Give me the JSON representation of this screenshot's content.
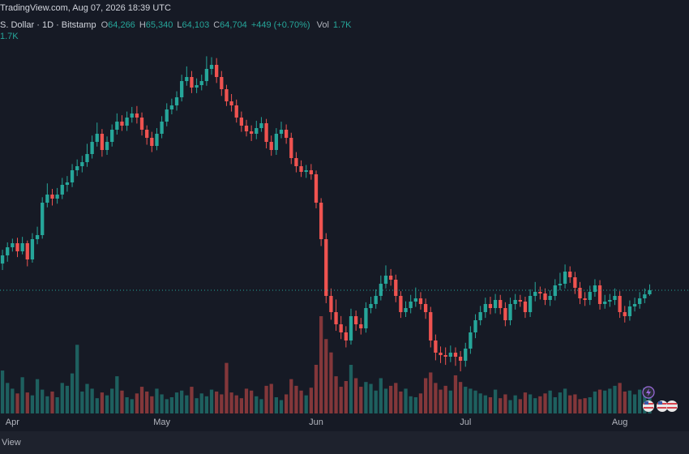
{
  "chart_data": {
    "type": "candlestick",
    "header": "TradingView.com, Aug 07, 2026 18:39 UTC",
    "symbol": "S. Dollar · 1D · Bitstamp",
    "legend": [
      {
        "key": "O",
        "value": "64,266"
      },
      {
        "key": "H",
        "value": "65,340"
      },
      {
        "key": "L",
        "value": "64,103"
      },
      {
        "key": "C",
        "value": "64,704"
      }
    ],
    "change": "+449 (+0.70%)",
    "volume_label": "Vol",
    "volume_value": "1.7K",
    "volume_indicator_value": "1.7K",
    "footer": "View",
    "up_color": "#26a69a",
    "down_color": "#ef5350",
    "last_price_line": true,
    "xlim": [
      -0.5,
      137.9
    ],
    "ylim": [
      51328,
      96208
    ],
    "volume_lim": [
      0,
      12750
    ],
    "xticks": [
      {
        "value": 2,
        "label": "Apr"
      },
      {
        "value": 32,
        "label": "May"
      },
      {
        "value": 63,
        "label": "Jun"
      },
      {
        "value": 93,
        "label": "Jul"
      },
      {
        "value": 124,
        "label": "Aug"
      }
    ],
    "open": [
      67600,
      68488,
      69368,
      69808,
      68928,
      69808,
      68048,
      70248,
      70688,
      74208,
      75088,
      74648,
      75088,
      76144,
      76408,
      77728,
      78168,
      78608,
      79488,
      80808,
      81688,
      79928,
      80808,
      82128,
      83008,
      82568,
      83448,
      83888,
      83448,
      82128,
      81248,
      80368,
      81688,
      83008,
      84328,
      84768,
      85648,
      87408,
      87848,
      86704,
      86968,
      87408,
      88728,
      89168,
      87848,
      86528,
      85208,
      84768,
      83448,
      82568,
      81952,
      81688,
      82304,
      82832,
      80808,
      79928,
      81688,
      82128,
      81248,
      79048,
      78168,
      77552,
      77728,
      77288,
      74208,
      70248,
      64088,
      62328,
      61008,
      60128,
      59248,
      61888,
      61008,
      60568,
      62768,
      63208,
      64088,
      65408,
      66288,
      65848,
      64088,
      62328,
      62768,
      63472,
      63824,
      63208,
      62328,
      59248,
      57928,
      57664,
      57488,
      57928,
      57488,
      57048,
      58368,
      60128,
      61448,
      62328,
      63208,
      62768,
      63648,
      62768,
      61448,
      63208,
      63648,
      63472,
      62328,
      64088,
      64528,
      64352,
      63648,
      64088,
      65232,
      65408,
      66728,
      66112,
      64968,
      63824,
      63648,
      64528,
      65232,
      63208,
      63472,
      63648,
      64088,
      62328,
      61888,
      62944,
      63208,
      63824,
      64266
    ],
    "high": [
      69100,
      69900,
      70300,
      70400,
      70500,
      70100,
      70900,
      71600,
      74800,
      76300,
      75700,
      75800,
      76900,
      77100,
      78400,
      78900,
      79300,
      80600,
      81500,
      82900,
      82200,
      81400,
      82700,
      83900,
      83700,
      84100,
      84600,
      84700,
      84000,
      82600,
      81900,
      82300,
      83600,
      85000,
      85500,
      86300,
      88100,
      89000,
      88500,
      87700,
      88100,
      90100,
      90000,
      89900,
      88500,
      87000,
      86000,
      85400,
      84100,
      83200,
      82600,
      83100,
      83500,
      83300,
      81500,
      82300,
      83000,
      82700,
      81800,
      79700,
      78800,
      78300,
      78400,
      77700,
      74700,
      70900,
      64900,
      63700,
      61900,
      60800,
      62700,
      62500,
      61700,
      63400,
      64000,
      64800,
      66300,
      67400,
      67000,
      66400,
      64600,
      63500,
      64200,
      65000,
      64500,
      63800,
      62900,
      59900,
      58600,
      58500,
      58700,
      58500,
      58100,
      59000,
      60800,
      62100,
      63000,
      63900,
      64000,
      64300,
      64200,
      63400,
      63900,
      64300,
      64200,
      64000,
      64800,
      65600,
      65100,
      64900,
      64700,
      65900,
      66600,
      67500,
      67300,
      66700,
      65600,
      64500,
      65200,
      65900,
      65800,
      64200,
      64300,
      64900,
      64600,
      63000,
      63600,
      63900,
      64500,
      64900,
      65340
    ],
    "low": [
      66900,
      67800,
      68900,
      68300,
      68600,
      67300,
      67700,
      69700,
      70300,
      73700,
      73900,
      74100,
      74600,
      75400,
      75900,
      77100,
      77500,
      78100,
      79000,
      80300,
      79200,
      79400,
      80300,
      81600,
      82000,
      82000,
      82900,
      82800,
      81500,
      80500,
      79700,
      79900,
      81200,
      82500,
      83800,
      84200,
      85200,
      86900,
      86100,
      86100,
      86400,
      86900,
      88100,
      87200,
      85800,
      84700,
      84100,
      82900,
      81900,
      81400,
      80900,
      81100,
      81900,
      80100,
      79300,
      79400,
      81200,
      80600,
      78400,
      77500,
      77000,
      76900,
      76700,
      73600,
      69500,
      63300,
      61500,
      60300,
      59400,
      58500,
      58800,
      60300,
      59900,
      60100,
      62200,
      62700,
      63600,
      64900,
      65200,
      63400,
      61700,
      61800,
      62200,
      62900,
      62600,
      61600,
      58500,
      57100,
      56800,
      56600,
      56900,
      56500,
      55900,
      56400,
      57800,
      59500,
      60900,
      61700,
      62100,
      62200,
      62100,
      60800,
      60900,
      62600,
      62900,
      61700,
      61800,
      63500,
      63700,
      63100,
      63000,
      63600,
      64700,
      64900,
      65500,
      64300,
      63200,
      63000,
      63100,
      64000,
      62600,
      62700,
      62900,
      63100,
      61700,
      61200,
      61400,
      62400,
      62700,
      63300,
      64103
    ],
    "close": [
      68488,
      69368,
      69808,
      68928,
      69808,
      68048,
      70248,
      70688,
      74208,
      75088,
      74648,
      75088,
      76144,
      76408,
      77728,
      78168,
      78608,
      79488,
      80808,
      81688,
      79928,
      80808,
      82128,
      83008,
      82568,
      83448,
      83888,
      83448,
      82128,
      81248,
      80368,
      81688,
      83008,
      84328,
      84768,
      85648,
      87408,
      87848,
      86704,
      86968,
      87408,
      88728,
      89168,
      87848,
      86528,
      85208,
      84768,
      83448,
      82568,
      81952,
      81688,
      82304,
      82832,
      80808,
      79928,
      81688,
      82128,
      81248,
      79048,
      78168,
      77552,
      77728,
      77288,
      74208,
      70248,
      64088,
      62328,
      61008,
      60128,
      59248,
      61888,
      61008,
      60568,
      62768,
      63208,
      64088,
      65408,
      66288,
      65848,
      64088,
      62328,
      62768,
      63472,
      63824,
      63208,
      62328,
      59248,
      57928,
      57664,
      57488,
      57928,
      57488,
      57048,
      58368,
      60128,
      61448,
      62328,
      63208,
      62768,
      63648,
      62768,
      61448,
      63208,
      63648,
      63472,
      62328,
      64088,
      64528,
      64352,
      63648,
      64088,
      65232,
      65408,
      66728,
      66112,
      64968,
      63824,
      63648,
      64528,
      65232,
      63208,
      63472,
      63648,
      64088,
      62328,
      61888,
      62944,
      63208,
      63824,
      64255,
      64704
    ],
    "volume": [
      4500,
      3200,
      2600,
      2100,
      3800,
      2200,
      1900,
      3600,
      2500,
      1800,
      2300,
      1700,
      3200,
      2900,
      4200,
      7200,
      2300,
      3100,
      2600,
      1600,
      2200,
      1900,
      2600,
      3900,
      2400,
      1700,
      1500,
      2100,
      2800,
      2300,
      1800,
      2600,
      2000,
      1500,
      1700,
      2200,
      2400,
      1900,
      2800,
      1600,
      2100,
      1800,
      2500,
      2300,
      2000,
      5300,
      2200,
      1900,
      1600,
      2600,
      2400,
      1800,
      1500,
      2900,
      3100,
      1700,
      1400,
      2000,
      3600,
      2900,
      2400,
      1900,
      2700,
      5100,
      10200,
      7800,
      6400,
      3900,
      2800,
      3400,
      5100,
      3700,
      2800,
      3300,
      3100,
      2400,
      3700,
      2600,
      2900,
      3200,
      2300,
      2600,
      1800,
      1700,
      2100,
      3700,
      4300,
      3200,
      2500,
      2900,
      2400,
      4000,
      3300,
      2800,
      2600,
      2400,
      2100,
      1900,
      1700,
      2500,
      1600,
      2000,
      1400,
      1900,
      1500,
      2200,
      2000,
      1600,
      1800,
      2100,
      2400,
      1700,
      2200,
      2600,
      1900,
      2000,
      1500,
      1600,
      1700,
      2300,
      2500,
      2400,
      2600,
      2900,
      3200,
      2300,
      2400,
      2000,
      2500,
      2700,
      1700
    ]
  }
}
